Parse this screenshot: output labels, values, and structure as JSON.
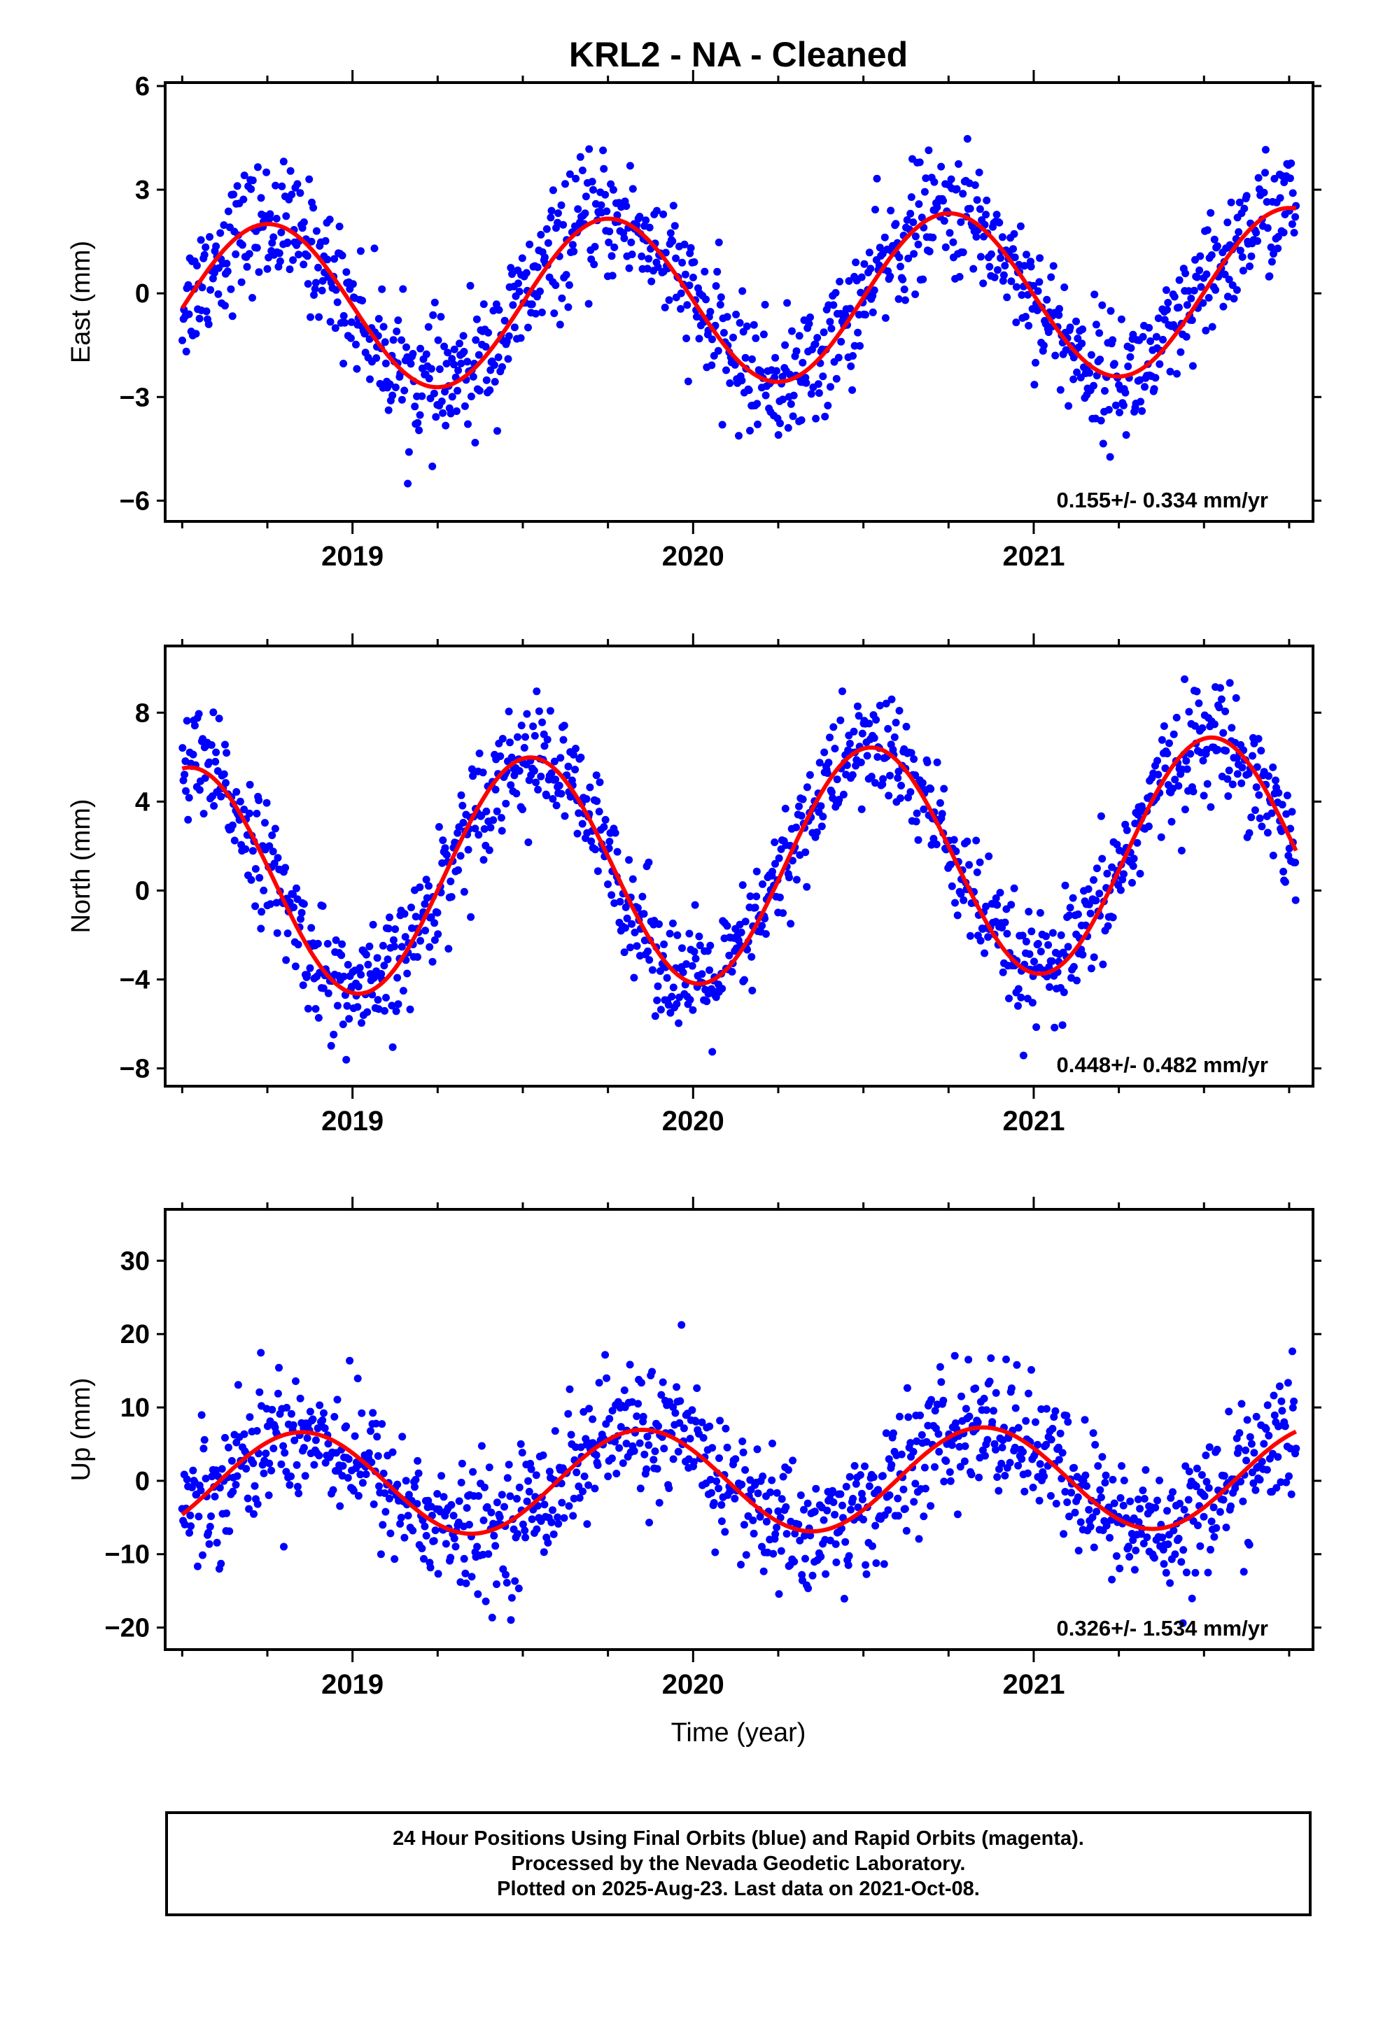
{
  "title": "KRL2  - NA - Cleaned",
  "xlabel": "Time (year)",
  "footer": {
    "line1": "24 Hour Positions Using Final Orbits (blue) and Rapid Orbits (magenta).",
    "line2": "Processed by the Nevada Geodetic Laboratory.",
    "line3": "Plotted on 2025-Aug-23. Last data on 2021-Oct-08."
  },
  "colors": {
    "final_orbits": "#0000ff",
    "rapid_orbits": "#ff00ff",
    "model_fit": "#ff0000",
    "frame": "#000000"
  },
  "chart_data": [
    {
      "type": "scatter",
      "ylabel": "East (mm)",
      "rate_label": "0.155+/- 0.334 mm/yr",
      "xlim": [
        2018.45,
        2021.82
      ],
      "ylim": [
        -6.6,
        6.1
      ],
      "yticks": [
        6,
        3,
        0,
        -3,
        -6
      ],
      "ytick_labels": [
        "6",
        "3",
        "0",
        "−3",
        "−6"
      ],
      "xticks": [
        2019,
        2020,
        2021
      ],
      "xtick_labels": [
        "2019",
        "2020",
        "2021"
      ],
      "fit": {
        "offset": -0.2,
        "trend": 0.155,
        "amplitude": 2.4,
        "phase_year": 0.5,
        "trend_origin": 2020.0
      },
      "scatter_sigma": 0.9,
      "series": [
        {
          "name": "Final Orbits",
          "x_range": [
            2018.5,
            2021.77
          ],
          "count": 1150
        }
      ]
    },
    {
      "type": "scatter",
      "ylabel": "North (mm)",
      "rate_label": "0.448+/- 0.482 mm/yr",
      "xlim": [
        2018.45,
        2021.82
      ],
      "ylim": [
        -8.8,
        11.0
      ],
      "yticks": [
        8,
        4,
        0,
        -4,
        -8
      ],
      "ytick_labels": [
        "8",
        "4",
        "0",
        "−4",
        "−8"
      ],
      "xticks": [
        2019,
        2020,
        2021
      ],
      "xtick_labels": [
        "2019",
        "2020",
        "2021"
      ],
      "fit": {
        "offset": 1.0,
        "trend": 0.448,
        "amplitude": 5.2,
        "phase_year": 0.27,
        "trend_origin": 2020.0
      },
      "scatter_sigma": 1.3,
      "series": [
        {
          "name": "Final Orbits",
          "x_range": [
            2018.5,
            2021.77
          ],
          "count": 1150
        }
      ]
    },
    {
      "type": "scatter",
      "ylabel": "Up (mm)",
      "rate_label": "0.326+/- 1.534 mm/yr",
      "xlim": [
        2018.45,
        2021.82
      ],
      "ylim": [
        -23.0,
        37.0
      ],
      "yticks": [
        30,
        20,
        10,
        0,
        -10,
        -20
      ],
      "ytick_labels": [
        "30",
        "20",
        "10",
        "0",
        "−10",
        "−20"
      ],
      "xticks": [
        2019,
        2020,
        2021
      ],
      "xtick_labels": [
        "2019",
        "2020",
        "2021"
      ],
      "fit": {
        "offset": 0.0,
        "trend": 0.326,
        "amplitude": 7.0,
        "phase_year": 0.6,
        "trend_origin": 2020.0
      },
      "scatter_sigma": 4.5,
      "series": [
        {
          "name": "Final Orbits",
          "x_range": [
            2018.5,
            2021.77
          ],
          "count": 1150
        }
      ]
    }
  ]
}
